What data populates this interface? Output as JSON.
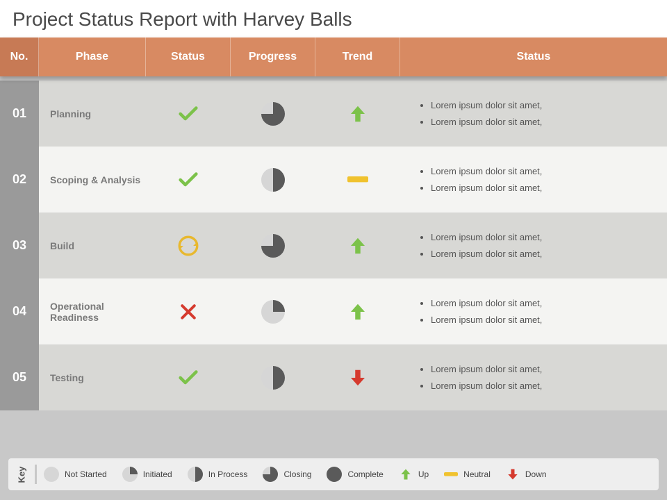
{
  "title": "Project Status Report with Harvey Balls",
  "colors": {
    "header_no": "#c77a55",
    "header_main": "#d88a62",
    "row_num_bg": "#9a9a9a",
    "row_odd_bg": "#d8d8d5",
    "row_even_bg": "#f4f4f2",
    "phase_text": "#7a7a7a",
    "harvey_fill": "#5a5a5a",
    "harvey_empty": "#d6d6d6",
    "check_green": "#7cc24a",
    "cross_red": "#d53a2e",
    "cycle_yellow": "#e8b82e",
    "arrow_up": "#7cc24a",
    "arrow_down": "#d53a2e",
    "neutral": "#f0c22e"
  },
  "columns": {
    "no": "No.",
    "phase": "Phase",
    "status": "Status",
    "progress": "Progress",
    "trend": "Trend",
    "desc": "Status"
  },
  "rows": [
    {
      "num": "01",
      "phase": "Planning",
      "status": "check",
      "progress": 0.75,
      "trend": "up",
      "notes": [
        "Lorem ipsum dolor sit amet,",
        "Lorem ipsum dolor sit amet,"
      ]
    },
    {
      "num": "02",
      "phase": "Scoping & Analysis",
      "status": "check",
      "progress": 0.5,
      "trend": "neutral",
      "notes": [
        "Lorem ipsum dolor sit amet,",
        "Lorem ipsum dolor sit amet,"
      ]
    },
    {
      "num": "03",
      "phase": "Build",
      "status": "cycle",
      "progress": 0.75,
      "trend": "up",
      "notes": [
        "Lorem ipsum dolor sit amet,",
        "Lorem ipsum dolor sit amet,"
      ]
    },
    {
      "num": "04",
      "phase": "Operational Readiness",
      "status": "cross",
      "progress": 0.25,
      "trend": "up",
      "notes": [
        "Lorem ipsum dolor sit amet,",
        "Lorem ipsum dolor sit amet,"
      ]
    },
    {
      "num": "05",
      "phase": "Testing",
      "status": "check",
      "progress": 0.5,
      "trend": "down",
      "notes": [
        "Lorem ipsum dolor sit amet,",
        "Lorem ipsum dolor sit amet,"
      ]
    }
  ],
  "legend": {
    "label": "Key",
    "items": [
      {
        "type": "harvey",
        "value": 0.0,
        "label": "Not Started"
      },
      {
        "type": "harvey",
        "value": 0.25,
        "label": "Initiated"
      },
      {
        "type": "harvey",
        "value": 0.5,
        "label": "In Process"
      },
      {
        "type": "harvey",
        "value": 0.75,
        "label": "Closing"
      },
      {
        "type": "harvey",
        "value": 1.0,
        "label": "Complete"
      },
      {
        "type": "trend",
        "value": "up",
        "label": "Up"
      },
      {
        "type": "trend",
        "value": "neutral",
        "label": "Neutral"
      },
      {
        "type": "trend",
        "value": "down",
        "label": "Down"
      }
    ]
  }
}
